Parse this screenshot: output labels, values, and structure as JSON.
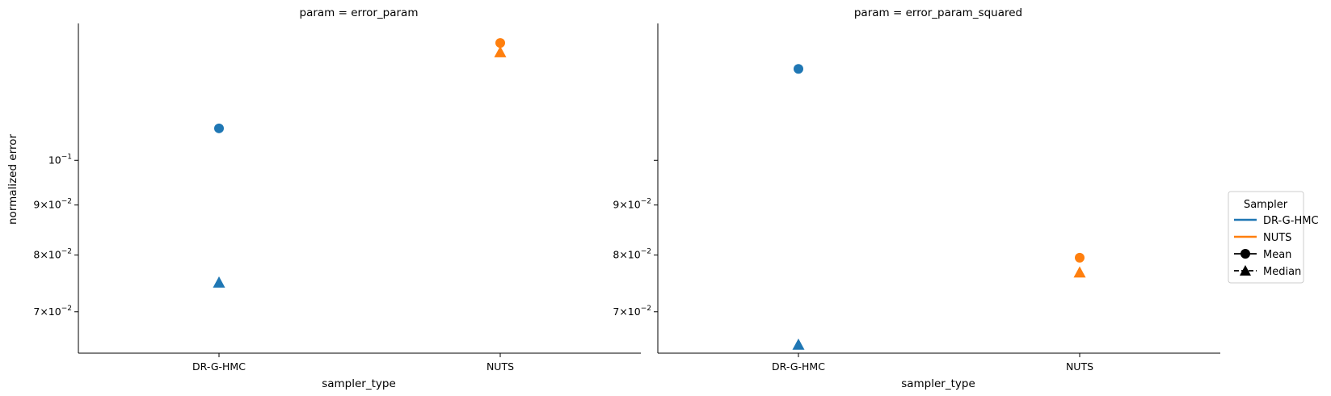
{
  "ylabel": "normalized error",
  "xlabel": "sampler_type",
  "categories": [
    "DR-G-HMC",
    "NUTS"
  ],
  "y_scale": "log",
  "ylim": [
    0.0635,
    0.138
  ],
  "y_tick_values": [
    0.1,
    0.09,
    0.08,
    0.07
  ],
  "y_tick_labels": [
    {
      "mant": "10",
      "exp": "−1"
    },
    {
      "mant": "9×10",
      "exp": "−2"
    },
    {
      "mant": "8×10",
      "exp": "−2"
    },
    {
      "mant": "7×10",
      "exp": "−2"
    }
  ],
  "colors": {
    "DR-G-HMC": "#1f77b4",
    "NUTS": "#ff7f0e",
    "axis": "#000000",
    "legend_border": "#cccccc"
  },
  "legend": {
    "title": "Sampler",
    "placement": "right-center",
    "entries": [
      {
        "label": "DR-G-HMC",
        "kind": "line",
        "color": "#1f77b4"
      },
      {
        "label": "NUTS",
        "kind": "line",
        "color": "#ff7f0e"
      },
      {
        "label": "Mean",
        "kind": "circle-marker",
        "color": "#000000"
      },
      {
        "label": "Median",
        "kind": "triangle-marker",
        "color": "#000000"
      }
    ]
  },
  "chart_data": [
    {
      "type": "scatter",
      "title": "param = error_param",
      "xlabel": "sampler_type",
      "ylabel": "normalized error",
      "categories": [
        "DR-G-HMC",
        "NUTS"
      ],
      "y_scale": "log",
      "series": [
        {
          "sampler": "DR-G-HMC",
          "stat": "Mean",
          "marker": "circle",
          "values": [
            0.1078,
            null
          ]
        },
        {
          "sampler": "DR-G-HMC",
          "stat": "Median",
          "marker": "triangle",
          "values": [
            0.075,
            null
          ]
        },
        {
          "sampler": "NUTS",
          "stat": "Mean",
          "marker": "circle",
          "values": [
            null,
            0.1318
          ]
        },
        {
          "sampler": "NUTS",
          "stat": "Median",
          "marker": "triangle",
          "values": [
            null,
            0.129
          ]
        }
      ]
    },
    {
      "type": "scatter",
      "title": "param = error_param_squared",
      "xlabel": "sampler_type",
      "ylabel": "",
      "categories": [
        "DR-G-HMC",
        "NUTS"
      ],
      "y_scale": "log",
      "series": [
        {
          "sampler": "DR-G-HMC",
          "stat": "Mean",
          "marker": "circle",
          "values": [
            0.124,
            null
          ]
        },
        {
          "sampler": "DR-G-HMC",
          "stat": "Median",
          "marker": "triangle",
          "values": [
            0.0648,
            null
          ]
        },
        {
          "sampler": "NUTS",
          "stat": "Mean",
          "marker": "circle",
          "values": [
            null,
            0.0795
          ]
        },
        {
          "sampler": "NUTS",
          "stat": "Median",
          "marker": "triangle",
          "values": [
            null,
            0.0768
          ]
        }
      ]
    }
  ]
}
